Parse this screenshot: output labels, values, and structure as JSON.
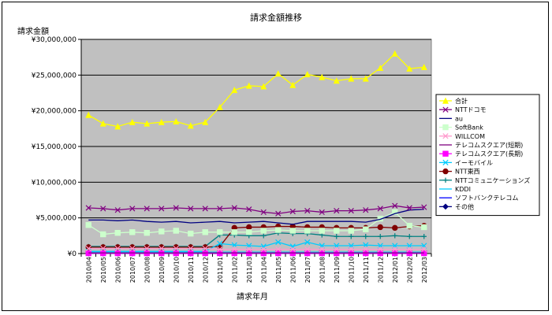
{
  "chart_data": {
    "type": "line",
    "title": "請求金額推移",
    "ylabel": "請求金額",
    "xlabel": "請求年月",
    "ylim": [
      0,
      30000000
    ],
    "yticks": [
      0,
      5000000,
      10000000,
      15000000,
      20000000,
      25000000,
      30000000
    ],
    "ytick_labels": [
      "¥0",
      "¥5,000,000",
      "¥10,000,000",
      "¥15,000,000",
      "¥20,000,000",
      "¥25,000,000",
      "¥30,000,000"
    ],
    "grid": true,
    "legend_position": "right",
    "plot_background": "#c0c0c0",
    "categories": [
      "2010/04",
      "2010/05",
      "2010/06",
      "2010/07",
      "2010/08",
      "2010/09",
      "2010/10",
      "2010/11",
      "2010/12",
      "2011/01",
      "2011/02",
      "2011/03",
      "2011/04",
      "2011/05",
      "2011/06",
      "2011/07",
      "2011/08",
      "2011/09",
      "2011/10",
      "2011/11",
      "2011/12",
      "2012/01",
      "2012/02",
      "2012/03"
    ],
    "series": [
      {
        "name": "合計",
        "color": "#ffff00",
        "marker": "triangle",
        "values": [
          19400000,
          18200000,
          17800000,
          18400000,
          18200000,
          18400000,
          18500000,
          17900000,
          18400000,
          20500000,
          22900000,
          23500000,
          23400000,
          25200000,
          23600000,
          25100000,
          24700000,
          24200000,
          24500000,
          24500000,
          26000000,
          28000000,
          25900000,
          26100000
        ]
      },
      {
        "name": "NTTドコモ",
        "color": "#800080",
        "marker": "x",
        "values": [
          6400000,
          6300000,
          6100000,
          6300000,
          6300000,
          6300000,
          6400000,
          6300000,
          6300000,
          6300000,
          6400000,
          6200000,
          5800000,
          5600000,
          5900000,
          6000000,
          5800000,
          6000000,
          6000000,
          6100000,
          6300000,
          6700000,
          6400000,
          6500000
        ]
      },
      {
        "name": "au",
        "color": "#000080",
        "marker": "none",
        "values": [
          4700000,
          4700000,
          4600000,
          4700000,
          4500000,
          4400000,
          4500000,
          4300000,
          4400000,
          4500000,
          4300000,
          4400000,
          4500000,
          4300000,
          4100000,
          4500000,
          4500000,
          4500000,
          4500000,
          4400000,
          4800000,
          5600000,
          6100000,
          6200000
        ]
      },
      {
        "name": "SoftBank",
        "color": "#ccffcc",
        "marker": "square",
        "values": [
          4000000,
          2700000,
          2900000,
          3000000,
          2900000,
          3100000,
          3200000,
          2800000,
          3000000,
          3000000,
          3000000,
          3000000,
          3200000,
          3300000,
          3200000,
          3200000,
          3200000,
          3200000,
          3200000,
          3400000,
          4900000,
          5800000,
          3900000,
          3700000
        ]
      },
      {
        "name": "WILLCOM",
        "color": "#ff99cc",
        "marker": "x",
        "values": [
          700000,
          700000,
          700000,
          700000,
          700000,
          700000,
          700000,
          700000,
          700000,
          600000,
          600000,
          600000,
          600000,
          600000,
          600000,
          600000,
          600000,
          600000,
          600000,
          600000,
          600000,
          600000,
          600000,
          600000
        ]
      },
      {
        "name": "テレコムスクエア(短期)",
        "color": "#800080",
        "marker": "none",
        "values": [
          100000,
          100000,
          100000,
          100000,
          100000,
          100000,
          100000,
          100000,
          100000,
          100000,
          100000,
          100000,
          100000,
          100000,
          100000,
          100000,
          100000,
          100000,
          100000,
          100000,
          100000,
          100000,
          100000,
          100000
        ]
      },
      {
        "name": "テレコムスクエア(長期)",
        "color": "#ff00ff",
        "marker": "square",
        "values": [
          50000,
          50000,
          50000,
          50000,
          50000,
          50000,
          50000,
          50000,
          50000,
          50000,
          50000,
          50000,
          50000,
          50000,
          50000,
          50000,
          50000,
          50000,
          50000,
          50000,
          50000,
          50000,
          50000,
          50000
        ]
      },
      {
        "name": "イーモバイル",
        "color": "#00ccff",
        "marker": "x",
        "values": [
          300000,
          300000,
          300000,
          300000,
          300000,
          300000,
          300000,
          300000,
          300000,
          1400000,
          1200000,
          1100000,
          1000000,
          1600000,
          1000000,
          1600000,
          1100000,
          1100000,
          1100000,
          1200000,
          1100000,
          1100000,
          1100000,
          1100000
        ]
      },
      {
        "name": "NTT東西",
        "color": "#800000",
        "marker": "circle",
        "values": [
          900000,
          900000,
          900000,
          900000,
          900000,
          900000,
          900000,
          900000,
          900000,
          1000000,
          3600000,
          3700000,
          3700000,
          3800000,
          3800000,
          3700000,
          3700000,
          3600000,
          3600000,
          3600000,
          3700000,
          3600000,
          3800000,
          3900000
        ]
      },
      {
        "name": "NTTコミュニケーションズ",
        "color": "#008080",
        "marker": "plus",
        "values": [
          1000000,
          1000000,
          1000000,
          1000000,
          1000000,
          1000000,
          1000000,
          1000000,
          1000000,
          2600000,
          2600000,
          2500000,
          2500000,
          2900000,
          2800000,
          2800000,
          2600000,
          2400000,
          2400000,
          2400000,
          2400000,
          2500000,
          2400000,
          2400000
        ]
      },
      {
        "name": "KDDI",
        "color": "#00ccff",
        "marker": "none",
        "values": [
          200000,
          200000,
          200000,
          200000,
          200000,
          200000,
          200000,
          200000,
          200000,
          200000,
          200000,
          200000,
          200000,
          200000,
          200000,
          200000,
          200000,
          200000,
          200000,
          200000,
          200000,
          200000,
          200000,
          200000
        ]
      },
      {
        "name": "ソフトバンクテレコム",
        "color": "#0000ff",
        "marker": "none",
        "values": [
          60000,
          60000,
          60000,
          60000,
          60000,
          60000,
          60000,
          60000,
          60000,
          60000,
          60000,
          60000,
          60000,
          60000,
          60000,
          60000,
          60000,
          60000,
          60000,
          60000,
          60000,
          60000,
          60000,
          60000
        ]
      },
      {
        "name": "その他",
        "color": "#000080",
        "marker": "diamond",
        "values": [
          20000,
          20000,
          20000,
          20000,
          20000,
          20000,
          20000,
          20000,
          20000,
          20000,
          20000,
          20000,
          20000,
          20000,
          20000,
          20000,
          20000,
          20000,
          20000,
          20000,
          20000,
          20000,
          20000,
          20000
        ]
      }
    ]
  }
}
